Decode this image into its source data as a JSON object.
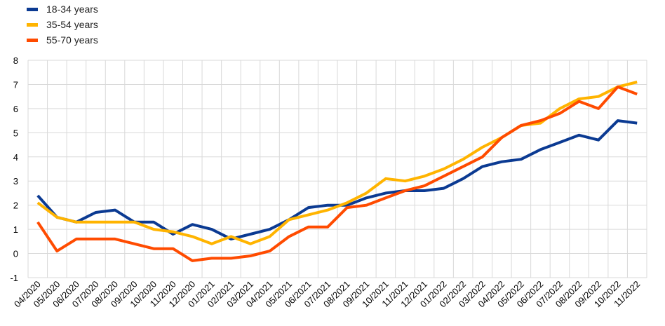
{
  "chart_data": {
    "type": "line",
    "title": "",
    "xlabel": "",
    "ylabel": "",
    "ylim": [
      -1,
      8
    ],
    "yticks": [
      -1,
      0,
      1,
      2,
      3,
      4,
      5,
      6,
      7,
      8
    ],
    "grid": true,
    "legend_position": "top-left",
    "categories": [
      "04/2020",
      "05/2020",
      "06/2020",
      "07/2020",
      "08/2020",
      "09/2020",
      "10/2020",
      "11/2020",
      "12/2020",
      "01/2021",
      "02/2021",
      "03/2021",
      "04/2021",
      "05/2021",
      "06/2021",
      "07/2021",
      "08/2021",
      "09/2021",
      "10/2021",
      "11/2021",
      "12/2021",
      "01/2022",
      "02/2022",
      "03/2022",
      "04/2022",
      "05/2022",
      "06/2022",
      "07/2022",
      "08/2022",
      "09/2022",
      "10/2022",
      "11/2022"
    ],
    "series": [
      {
        "name": "18-34 years",
        "color": "#0b3a92",
        "values": [
          2.4,
          1.5,
          1.3,
          1.7,
          1.8,
          1.3,
          1.3,
          0.8,
          1.2,
          1.0,
          0.6,
          0.8,
          1.0,
          1.4,
          1.9,
          2.0,
          2.0,
          2.3,
          2.5,
          2.6,
          2.6,
          2.7,
          3.1,
          3.6,
          3.8,
          3.9,
          4.3,
          4.6,
          4.9,
          4.7,
          5.5,
          5.4
        ]
      },
      {
        "name": "35-54 years",
        "color": "#ffb400",
        "values": [
          2.1,
          1.5,
          1.3,
          1.3,
          1.3,
          1.3,
          1.0,
          0.9,
          0.7,
          0.4,
          0.7,
          0.4,
          0.7,
          1.4,
          1.6,
          1.8,
          2.1,
          2.5,
          3.1,
          3.0,
          3.2,
          3.5,
          3.9,
          4.4,
          4.8,
          5.3,
          5.4,
          6.0,
          6.4,
          6.5,
          6.9,
          7.1
        ]
      },
      {
        "name": "55-70 years",
        "color": "#ff4b00",
        "values": [
          1.3,
          0.1,
          0.6,
          0.6,
          0.6,
          0.4,
          0.2,
          0.2,
          -0.3,
          -0.2,
          -0.2,
          -0.1,
          0.1,
          0.7,
          1.1,
          1.1,
          1.9,
          2.0,
          2.3,
          2.6,
          2.8,
          3.2,
          3.6,
          4.0,
          4.8,
          5.3,
          5.5,
          5.8,
          6.3,
          6.0,
          6.9,
          6.6
        ]
      }
    ]
  }
}
